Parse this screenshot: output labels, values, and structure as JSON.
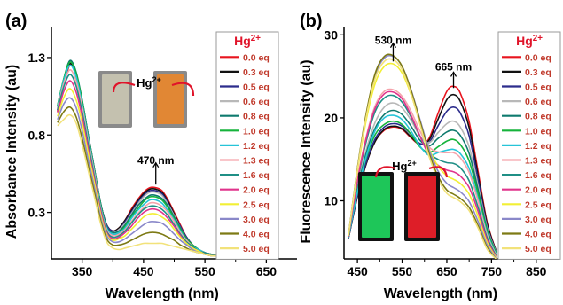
{
  "chart_data": [
    {
      "type": "line",
      "panel_label": "(a)",
      "title": "",
      "xlabel": "Wavelength (nm)",
      "ylabel": "Absorbance Intensity (au)",
      "xlim": [
        300,
        700
      ],
      "ylim": [
        0,
        1.5
      ],
      "xticks": [
        350,
        450,
        550,
        650
      ],
      "yticks": [
        0.3,
        0.8,
        1.3
      ],
      "grid": false,
      "legend": {
        "title": "Hg",
        "title_sup": "2+",
        "placement": "right"
      },
      "annotations": [
        {
          "text": "470 nm",
          "x": 470,
          "y": 0.52
        }
      ],
      "inset": {
        "label": "Hg",
        "label_sup": "2+",
        "colors": [
          "#c9c6b2",
          "#e8872c"
        ]
      },
      "x": [
        310,
        320,
        330,
        340,
        350,
        360,
        370,
        380,
        390,
        400,
        410,
        420,
        430,
        440,
        450,
        460,
        470,
        480,
        490,
        500,
        510,
        520,
        530,
        540,
        550,
        560,
        570,
        580
      ],
      "series": [
        {
          "name": "0.0 eq",
          "color": "#e8141e",
          "values": [
            0.95,
            1.12,
            1.25,
            1.19,
            1.02,
            0.8,
            0.58,
            0.36,
            0.22,
            0.18,
            0.2,
            0.25,
            0.32,
            0.38,
            0.43,
            0.46,
            0.46,
            0.44,
            0.38,
            0.3,
            0.22,
            0.14,
            0.09,
            0.06,
            0.04,
            0.03,
            0.02,
            0.02
          ]
        },
        {
          "name": "0.3 eq",
          "color": "#111111",
          "values": [
            0.96,
            1.13,
            1.26,
            1.19,
            1.02,
            0.8,
            0.58,
            0.36,
            0.22,
            0.18,
            0.2,
            0.25,
            0.31,
            0.37,
            0.42,
            0.45,
            0.45,
            0.43,
            0.37,
            0.29,
            0.21,
            0.14,
            0.09,
            0.06,
            0.04,
            0.03,
            0.02,
            0.02
          ]
        },
        {
          "name": "0.5 eq",
          "color": "#2c2c8c",
          "values": [
            0.97,
            1.14,
            1.27,
            1.2,
            1.02,
            0.8,
            0.58,
            0.36,
            0.22,
            0.18,
            0.19,
            0.24,
            0.3,
            0.36,
            0.41,
            0.44,
            0.44,
            0.42,
            0.36,
            0.28,
            0.21,
            0.14,
            0.09,
            0.06,
            0.04,
            0.03,
            0.02,
            0.02
          ]
        },
        {
          "name": "0.6 eq",
          "color": "#b8b8b8",
          "values": [
            0.98,
            1.15,
            1.28,
            1.2,
            1.02,
            0.8,
            0.58,
            0.36,
            0.21,
            0.17,
            0.19,
            0.23,
            0.29,
            0.35,
            0.4,
            0.43,
            0.43,
            0.41,
            0.35,
            0.28,
            0.2,
            0.13,
            0.09,
            0.06,
            0.04,
            0.03,
            0.02,
            0.02
          ]
        },
        {
          "name": "0.8 eq",
          "color": "#0e7a6e",
          "values": [
            0.99,
            1.16,
            1.28,
            1.21,
            1.03,
            0.8,
            0.58,
            0.36,
            0.21,
            0.17,
            0.18,
            0.22,
            0.28,
            0.34,
            0.38,
            0.41,
            0.41,
            0.39,
            0.34,
            0.27,
            0.2,
            0.13,
            0.09,
            0.06,
            0.04,
            0.03,
            0.02,
            0.02
          ]
        },
        {
          "name": "1.0 eq",
          "color": "#16b33c",
          "values": [
            0.99,
            1.16,
            1.27,
            1.2,
            1.02,
            0.79,
            0.57,
            0.35,
            0.2,
            0.16,
            0.17,
            0.21,
            0.27,
            0.32,
            0.37,
            0.4,
            0.4,
            0.38,
            0.33,
            0.26,
            0.19,
            0.13,
            0.09,
            0.06,
            0.04,
            0.03,
            0.02,
            0.02
          ]
        },
        {
          "name": "1.2 eq",
          "color": "#26c4d8",
          "values": [
            0.98,
            1.15,
            1.25,
            1.18,
            1.0,
            0.78,
            0.56,
            0.34,
            0.2,
            0.16,
            0.17,
            0.2,
            0.26,
            0.31,
            0.35,
            0.38,
            0.38,
            0.36,
            0.31,
            0.25,
            0.18,
            0.12,
            0.08,
            0.06,
            0.04,
            0.03,
            0.02,
            0.02
          ]
        },
        {
          "name": "1.3 eq",
          "color": "#f5a3ab",
          "values": [
            0.97,
            1.13,
            1.22,
            1.15,
            0.98,
            0.76,
            0.55,
            0.33,
            0.19,
            0.15,
            0.16,
            0.19,
            0.24,
            0.29,
            0.33,
            0.36,
            0.36,
            0.34,
            0.3,
            0.24,
            0.17,
            0.12,
            0.08,
            0.05,
            0.04,
            0.03,
            0.02,
            0.02
          ]
        },
        {
          "name": "1.6 eq",
          "color": "#1f8f86",
          "values": [
            0.96,
            1.11,
            1.19,
            1.12,
            0.95,
            0.74,
            0.53,
            0.32,
            0.18,
            0.14,
            0.15,
            0.18,
            0.23,
            0.28,
            0.32,
            0.34,
            0.34,
            0.32,
            0.28,
            0.22,
            0.16,
            0.11,
            0.08,
            0.05,
            0.04,
            0.03,
            0.02,
            0.02
          ]
        },
        {
          "name": "2.0 eq",
          "color": "#e0348c",
          "values": [
            0.94,
            1.08,
            1.15,
            1.08,
            0.92,
            0.71,
            0.51,
            0.31,
            0.17,
            0.13,
            0.14,
            0.17,
            0.21,
            0.26,
            0.3,
            0.32,
            0.32,
            0.3,
            0.26,
            0.21,
            0.15,
            0.1,
            0.07,
            0.05,
            0.03,
            0.02,
            0.02,
            0.02
          ]
        },
        {
          "name": "2.5 eq",
          "color": "#f2ef35",
          "values": [
            0.92,
            1.04,
            1.1,
            1.03,
            0.88,
            0.68,
            0.49,
            0.29,
            0.16,
            0.12,
            0.13,
            0.15,
            0.19,
            0.23,
            0.27,
            0.29,
            0.29,
            0.27,
            0.24,
            0.19,
            0.14,
            0.1,
            0.07,
            0.05,
            0.03,
            0.02,
            0.02,
            0.02
          ]
        },
        {
          "name": "3.0 eq",
          "color": "#8a88c9",
          "values": [
            0.9,
            1.0,
            1.04,
            0.98,
            0.83,
            0.64,
            0.46,
            0.27,
            0.15,
            0.11,
            0.11,
            0.13,
            0.16,
            0.19,
            0.22,
            0.24,
            0.24,
            0.23,
            0.2,
            0.16,
            0.12,
            0.09,
            0.06,
            0.04,
            0.03,
            0.02,
            0.02,
            0.02
          ]
        },
        {
          "name": "4.0 eq",
          "color": "#7d7a14",
          "values": [
            0.88,
            0.95,
            0.98,
            0.92,
            0.78,
            0.6,
            0.43,
            0.25,
            0.13,
            0.09,
            0.09,
            0.1,
            0.12,
            0.14,
            0.16,
            0.17,
            0.17,
            0.16,
            0.14,
            0.12,
            0.09,
            0.07,
            0.05,
            0.04,
            0.03,
            0.02,
            0.02,
            0.02
          ]
        },
        {
          "name": "5.0 eq",
          "color": "#f2e27a",
          "values": [
            0.86,
            0.9,
            0.93,
            0.88,
            0.74,
            0.57,
            0.4,
            0.23,
            0.11,
            0.07,
            0.06,
            0.07,
            0.08,
            0.09,
            0.1,
            0.1,
            0.1,
            0.1,
            0.09,
            0.08,
            0.07,
            0.06,
            0.05,
            0.04,
            0.03,
            0.02,
            0.02,
            0.02
          ]
        }
      ]
    },
    {
      "type": "line",
      "panel_label": "(b)",
      "title": "",
      "xlabel": "Wavelength (nm)",
      "ylabel": "Fluorescence Intensity (au)",
      "xlim": [
        420,
        900
      ],
      "ylim": [
        3,
        31
      ],
      "xticks": [
        450,
        550,
        650,
        750,
        850
      ],
      "yticks": [
        10,
        20,
        30
      ],
      "grid": false,
      "legend": {
        "title": "Hg",
        "title_sup": "2+",
        "placement": "right"
      },
      "annotations": [
        {
          "text": "530 nm",
          "x": 530,
          "y": 27
        },
        {
          "text": "665 nm",
          "x": 665,
          "y": 23.8
        }
      ],
      "inset": {
        "label": "Hg",
        "label_sup": "2+",
        "colors": [
          "#1fd660",
          "#f0202a"
        ]
      },
      "x": [
        430,
        450,
        470,
        490,
        510,
        530,
        550,
        570,
        590,
        610,
        630,
        650,
        665,
        680,
        700,
        720,
        740,
        760
      ],
      "series": [
        {
          "name": "0.0 eq",
          "color": "#e8141e",
          "values": [
            5.5,
            10.5,
            14.5,
            17.2,
            18.5,
            18.9,
            18.6,
            17.6,
            16.8,
            17.5,
            20.5,
            23.2,
            23.8,
            23.0,
            19.5,
            13.5,
            7.5,
            4.0
          ]
        },
        {
          "name": "0.3 eq",
          "color": "#111111",
          "values": [
            5.5,
            10.5,
            14.5,
            17.2,
            18.6,
            19.0,
            18.7,
            17.7,
            16.8,
            17.3,
            19.8,
            22.2,
            22.8,
            22.0,
            18.8,
            13.0,
            7.3,
            4.0
          ]
        },
        {
          "name": "0.5 eq",
          "color": "#2c2c8c",
          "values": [
            5.5,
            10.6,
            14.7,
            17.5,
            18.9,
            19.3,
            19.0,
            18.0,
            16.9,
            17.0,
            19.0,
            20.8,
            21.3,
            20.6,
            17.8,
            12.5,
            7.0,
            3.9
          ]
        },
        {
          "name": "0.6 eq",
          "color": "#b8b8b8",
          "values": [
            5.6,
            11.5,
            16.2,
            19.5,
            21.3,
            21.8,
            21.2,
            19.7,
            17.8,
            17.0,
            18.2,
            19.3,
            19.6,
            18.9,
            16.5,
            11.8,
            6.8,
            3.9
          ]
        },
        {
          "name": "0.8 eq",
          "color": "#0e7a6e",
          "values": [
            5.6,
            11.3,
            15.8,
            18.8,
            20.4,
            20.9,
            20.4,
            19.0,
            17.3,
            16.6,
            17.5,
            18.3,
            18.5,
            17.9,
            15.7,
            11.3,
            6.6,
            3.8
          ]
        },
        {
          "name": "1.0 eq",
          "color": "#16b33c",
          "values": [
            5.6,
            11.0,
            15.2,
            18.0,
            19.2,
            19.6,
            19.2,
            18.0,
            16.5,
            15.8,
            16.5,
            17.2,
            17.4,
            16.8,
            14.8,
            10.8,
            6.4,
            3.7
          ]
        },
        {
          "name": "1.2 eq",
          "color": "#26c4d8",
          "values": [
            5.6,
            11.0,
            15.4,
            18.5,
            20.0,
            20.3,
            19.8,
            18.4,
            16.6,
            15.5,
            15.8,
            16.1,
            16.2,
            15.7,
            13.9,
            10.2,
            6.1,
            3.6
          ]
        },
        {
          "name": "1.3 eq",
          "color": "#f5a3ab",
          "values": [
            5.7,
            12.5,
            17.8,
            21.5,
            23.2,
            23.4,
            22.6,
            20.8,
            18.4,
            16.5,
            15.9,
            15.8,
            15.8,
            15.2,
            13.4,
            9.9,
            5.9,
            3.5
          ]
        },
        {
          "name": "1.6 eq",
          "color": "#1f8f86",
          "values": [
            5.7,
            12.2,
            17.2,
            20.8,
            22.4,
            22.7,
            21.9,
            20.1,
            17.8,
            15.8,
            15.0,
            14.6,
            14.5,
            14.0,
            12.4,
            9.2,
            5.6,
            3.4
          ]
        },
        {
          "name": "2.0 eq",
          "color": "#e0348c",
          "values": [
            5.7,
            12.4,
            17.6,
            21.2,
            22.9,
            23.1,
            22.3,
            20.3,
            17.8,
            15.5,
            14.3,
            13.7,
            13.5,
            13.0,
            11.6,
            8.7,
            5.3,
            3.3
          ]
        },
        {
          "name": "2.5 eq",
          "color": "#f2ef35",
          "values": [
            5.8,
            13.5,
            19.8,
            24.2,
            26.2,
            26.5,
            25.4,
            22.8,
            19.5,
            16.3,
            14.2,
            13.0,
            12.6,
            12.1,
            10.8,
            8.1,
            5.0,
            3.2
          ]
        },
        {
          "name": "3.0 eq",
          "color": "#8a88c9",
          "values": [
            5.8,
            13.8,
            20.4,
            25.2,
            27.2,
            27.4,
            26.2,
            23.4,
            19.8,
            16.2,
            13.6,
            12.1,
            11.6,
            11.1,
            9.9,
            7.5,
            4.7,
            3.1
          ]
        },
        {
          "name": "4.0 eq",
          "color": "#7d7a14",
          "values": [
            5.8,
            13.9,
            20.6,
            25.4,
            27.4,
            27.5,
            26.2,
            23.3,
            19.6,
            15.8,
            13.0,
            11.3,
            10.8,
            10.3,
            9.2,
            7.0,
            4.4,
            3.0
          ]
        },
        {
          "name": "5.0 eq",
          "color": "#f2e27a",
          "values": [
            5.8,
            13.7,
            20.2,
            24.8,
            26.8,
            27.0,
            25.8,
            22.9,
            19.2,
            15.4,
            12.6,
            10.9,
            10.4,
            9.9,
            8.8,
            6.7,
            4.2,
            3.0
          ]
        }
      ]
    }
  ]
}
